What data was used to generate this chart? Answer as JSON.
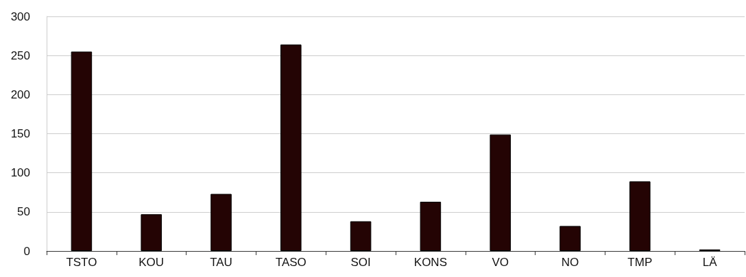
{
  "chart_data": {
    "type": "bar",
    "categories": [
      "TSTO",
      "KOU",
      "TAU",
      "TASO",
      "SOI",
      "KONS",
      "VO",
      "NO",
      "TMP",
      "LÄ"
    ],
    "values": [
      255,
      47,
      73,
      264,
      38,
      63,
      149,
      32,
      89,
      2
    ],
    "color": "#240404",
    "ylim": [
      0,
      300
    ],
    "yticks": [
      0,
      50,
      100,
      150,
      200,
      250,
      300
    ],
    "grid": "y"
  }
}
